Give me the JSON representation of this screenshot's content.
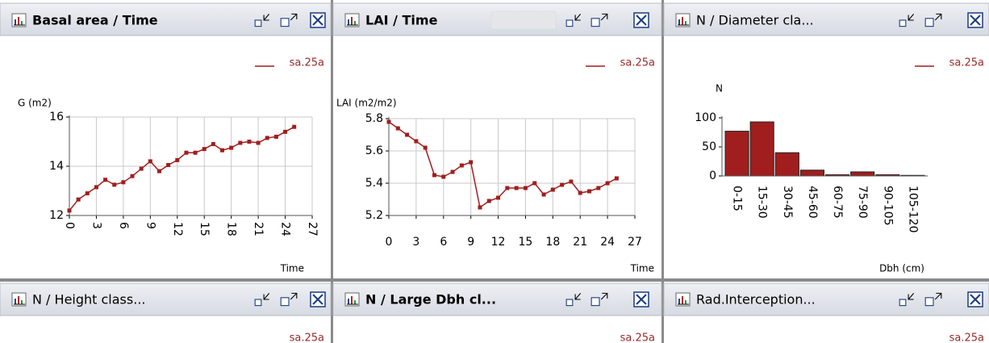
{
  "panels": [
    {
      "title": "Basal area / Time",
      "chart": {
        "type": "line",
        "ylabel": "G (m2)",
        "xlabel": "Time",
        "grid": true,
        "x": [
          0,
          1,
          2,
          3,
          4,
          5,
          6,
          7,
          8,
          9,
          10,
          11,
          12,
          13,
          14,
          15,
          16,
          17,
          18,
          19,
          20,
          21,
          22,
          23,
          24,
          25
        ],
        "series": [
          {
            "name": "sa.25a",
            "color": "#a01e1e",
            "values": [
              12.2,
              12.65,
              12.9,
              13.15,
              13.45,
              13.25,
              13.35,
              13.6,
              13.9,
              14.2,
              13.8,
              14.05,
              14.25,
              14.55,
              14.55,
              14.7,
              14.9,
              14.65,
              14.75,
              14.95,
              15.0,
              14.95,
              15.15,
              15.2,
              15.4,
              15.6
            ]
          }
        ],
        "xlim": [
          0,
          27
        ],
        "xticks": [
          0,
          3,
          6,
          9,
          12,
          15,
          18,
          21,
          24,
          27
        ],
        "ylim": [
          12,
          16
        ],
        "yticks": [
          12,
          14,
          16
        ]
      }
    },
    {
      "title": "LAI / Time",
      "chart": {
        "type": "line",
        "ylabel": "LAI (m2/m2)",
        "xlabel": "Time",
        "grid": true,
        "x": [
          0,
          1,
          2,
          3,
          4,
          5,
          6,
          7,
          8,
          9,
          10,
          11,
          12,
          13,
          14,
          15,
          16,
          17,
          18,
          19,
          20,
          21,
          22,
          23,
          24,
          25
        ],
        "series": [
          {
            "name": "sa.25a",
            "color": "#a01e1e",
            "values": [
              5.78,
              5.74,
              5.7,
              5.66,
              5.62,
              5.45,
              5.44,
              5.47,
              5.51,
              5.53,
              5.25,
              5.29,
              5.31,
              5.37,
              5.37,
              5.37,
              5.4,
              5.33,
              5.36,
              5.39,
              5.41,
              5.34,
              5.35,
              5.37,
              5.4,
              5.43
            ]
          }
        ],
        "xlim": [
          0,
          27
        ],
        "xticks": [
          0,
          3,
          6,
          9,
          12,
          15,
          18,
          21,
          24,
          27
        ],
        "ylim": [
          5.2,
          5.8
        ],
        "yticks": [
          5.2,
          5.4,
          5.6,
          5.8
        ]
      }
    },
    {
      "title": "N / Diameter cla...",
      "chart": {
        "type": "bar",
        "ylabel": "N",
        "xlabel": "Dbh (cm)",
        "grid": false,
        "categories": [
          "0-15",
          "15-30",
          "30-45",
          "45-60",
          "60-75",
          "75-90",
          "90-105",
          "105-120"
        ],
        "series": [
          {
            "name": "sa.25a",
            "color": "#a01e1e",
            "values": [
              77,
              93,
              40,
              10,
              2,
              7,
              2,
              1
            ]
          }
        ],
        "ylim": [
          0,
          100
        ],
        "yticks": [
          0,
          50,
          100
        ]
      }
    },
    {
      "title": "N / Height class...",
      "legend": "sa.25a"
    },
    {
      "title": "N / Large Dbh cl...",
      "legend": "sa.25a"
    },
    {
      "title": "Rad.Interception...",
      "legend": "sa.25a"
    }
  ]
}
